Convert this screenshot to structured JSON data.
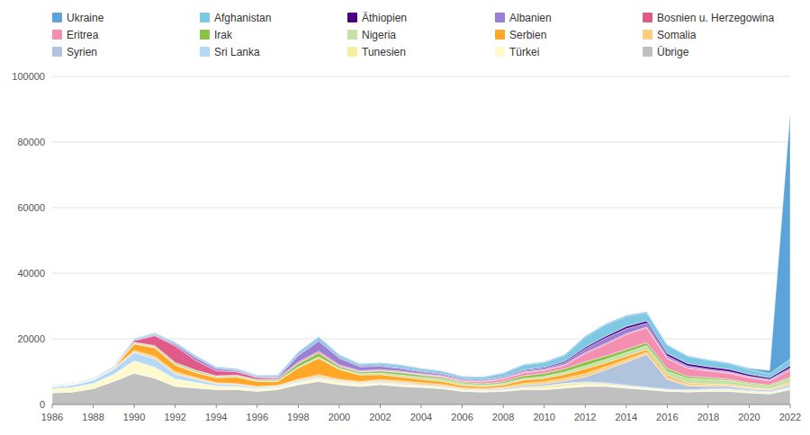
{
  "chart_data": {
    "type": "area",
    "stacked": true,
    "grid": true,
    "legend": "top",
    "x": [
      1986,
      1987,
      1988,
      1989,
      1990,
      1991,
      1992,
      1993,
      1994,
      1995,
      1996,
      1997,
      1998,
      1999,
      2000,
      2001,
      2002,
      2003,
      2004,
      2005,
      2006,
      2007,
      2008,
      2009,
      2010,
      2011,
      2012,
      2013,
      2014,
      2015,
      2016,
      2017,
      2018,
      2019,
      2020,
      2021,
      2022
    ],
    "series": [
      {
        "name": "Übrige",
        "color": "#C0C0C0",
        "values": [
          3500,
          3800,
          4800,
          7000,
          9500,
          8000,
          5500,
          5000,
          4500,
          4500,
          4000,
          4500,
          6000,
          7000,
          6000,
          5500,
          6000,
          5500,
          5200,
          4800,
          4000,
          3800,
          4000,
          4500,
          4500,
          5000,
          5500,
          5500,
          5000,
          4500,
          4000,
          3800,
          4000,
          4000,
          3500,
          3200,
          4500
        ]
      },
      {
        "name": "Türkei",
        "color": "#FFFACD",
        "values": [
          1200,
          1300,
          1500,
          2000,
          3500,
          3000,
          2000,
          1500,
          1000,
          800,
          700,
          600,
          700,
          800,
          600,
          500,
          400,
          400,
          300,
          300,
          250,
          200,
          200,
          300,
          300,
          400,
          500,
          400,
          350,
          300,
          250,
          200,
          200,
          200,
          200,
          200,
          300
        ]
      },
      {
        "name": "Tunesien",
        "color": "#F5F0A0",
        "values": [
          100,
          100,
          100,
          200,
          300,
          400,
          300,
          200,
          150,
          150,
          100,
          100,
          100,
          200,
          300,
          300,
          300,
          300,
          200,
          200,
          150,
          150,
          200,
          400,
          700,
          900,
          600,
          400,
          300,
          250,
          200,
          250,
          300,
          400,
          350,
          300,
          350
        ]
      },
      {
        "name": "Sri Lanka",
        "color": "#B3D9F7",
        "values": [
          500,
          700,
          1000,
          1500,
          2500,
          2500,
          1500,
          1000,
          600,
          500,
          400,
          300,
          300,
          300,
          200,
          200,
          300,
          300,
          200,
          200,
          150,
          150,
          150,
          150,
          150,
          200,
          300,
          300,
          250,
          200,
          200,
          200,
          200,
          200,
          200,
          200,
          300
        ]
      },
      {
        "name": "Syrien",
        "color": "#B0C4DE",
        "values": [
          50,
          50,
          50,
          100,
          150,
          150,
          100,
          100,
          100,
          100,
          100,
          100,
          150,
          200,
          200,
          200,
          200,
          200,
          150,
          150,
          150,
          200,
          300,
          500,
          600,
          700,
          1500,
          4000,
          7000,
          10000,
          3000,
          1200,
          800,
          700,
          500,
          400,
          600
        ]
      },
      {
        "name": "Somalia",
        "color": "#FFCC80",
        "values": [
          100,
          100,
          150,
          200,
          500,
          700,
          600,
          400,
          300,
          300,
          200,
          200,
          400,
          600,
          400,
          300,
          400,
          500,
          600,
          500,
          400,
          300,
          400,
          600,
          700,
          800,
          1000,
          900,
          800,
          700,
          600,
          500,
          400,
          350,
          300,
          250,
          400
        ]
      },
      {
        "name": "Serbien",
        "color": "#FFA726",
        "values": [
          0,
          0,
          0,
          0,
          2000,
          2500,
          2000,
          1500,
          1500,
          2000,
          1500,
          1200,
          3500,
          5000,
          3000,
          2000,
          1500,
          1200,
          1000,
          900,
          700,
          600,
          700,
          1000,
          1000,
          1200,
          1500,
          1200,
          1000,
          800,
          600,
          400,
          300,
          250,
          200,
          200,
          300
        ]
      },
      {
        "name": "Nigeria",
        "color": "#C5E1A5",
        "values": [
          50,
          50,
          50,
          100,
          200,
          300,
          300,
          250,
          200,
          200,
          200,
          200,
          300,
          400,
          300,
          400,
          500,
          600,
          700,
          700,
          600,
          500,
          500,
          500,
          600,
          700,
          900,
          1000,
          1100,
          1200,
          1300,
          1400,
          1500,
          1200,
          1000,
          900,
          1200
        ]
      },
      {
        "name": "Irak",
        "color": "#8BC34A",
        "values": [
          50,
          50,
          50,
          100,
          200,
          300,
          400,
          400,
          300,
          300,
          300,
          400,
          1000,
          1200,
          600,
          500,
          600,
          700,
          600,
          500,
          400,
          400,
          500,
          800,
          900,
          1000,
          1200,
          1100,
          1000,
          900,
          800,
          600,
          500,
          400,
          350,
          300,
          400
        ]
      },
      {
        "name": "Eritrea",
        "color": "#F48FB1",
        "values": [
          50,
          50,
          50,
          50,
          100,
          100,
          100,
          100,
          100,
          100,
          100,
          100,
          150,
          200,
          200,
          200,
          200,
          200,
          200,
          300,
          400,
          600,
          800,
          900,
          900,
          1000,
          2500,
          3500,
          4500,
          4500,
          3000,
          2500,
          2000,
          1800,
          1500,
          1200,
          2000
        ]
      },
      {
        "name": "Bosnien u. Herzegowina",
        "color": "#E05A8A",
        "values": [
          0,
          0,
          0,
          0,
          500,
          3000,
          5000,
          3000,
          1500,
          1000,
          600,
          400,
          300,
          400,
          300,
          200,
          250,
          250,
          200,
          200,
          150,
          150,
          150,
          200,
          200,
          250,
          300,
          300,
          300,
          250,
          200,
          200,
          200,
          200,
          200,
          200,
          300
        ]
      },
      {
        "name": "Albanien",
        "color": "#9B7FD4",
        "values": [
          0,
          0,
          0,
          0,
          100,
          200,
          500,
          800,
          600,
          400,
          200,
          150,
          2000,
          3000,
          2000,
          1200,
          1000,
          800,
          600,
          500,
          350,
          300,
          300,
          400,
          400,
          600,
          1200,
          1600,
          1500,
          1200,
          700,
          500,
          400,
          350,
          300,
          300,
          500
        ]
      },
      {
        "name": "Äthiopien",
        "color": "#4B0082",
        "values": [
          50,
          50,
          50,
          100,
          150,
          150,
          150,
          150,
          150,
          150,
          100,
          100,
          150,
          200,
          200,
          200,
          200,
          200,
          200,
          200,
          200,
          200,
          250,
          300,
          350,
          400,
          500,
          600,
          700,
          700,
          700,
          700,
          700,
          700,
          600,
          500,
          700
        ]
      },
      {
        "name": "Afghanistan",
        "color": "#7EC8E3",
        "values": [
          100,
          100,
          150,
          200,
          300,
          400,
          500,
          500,
          400,
          400,
          400,
          500,
          800,
          1000,
          700,
          600,
          700,
          800,
          700,
          700,
          600,
          700,
          1000,
          1500,
          1500,
          1800,
          3000,
          3500,
          3000,
          2500,
          2500,
          2200,
          2000,
          1800,
          1500,
          1200,
          2000
        ]
      },
      {
        "name": "Ukraine",
        "color": "#5BA3D9",
        "values": [
          50,
          50,
          50,
          100,
          150,
          150,
          100,
          100,
          100,
          100,
          100,
          100,
          150,
          200,
          200,
          200,
          200,
          200,
          150,
          150,
          150,
          150,
          200,
          200,
          200,
          250,
          300,
          300,
          300,
          300,
          250,
          200,
          200,
          200,
          300,
          1000,
          75000
        ]
      }
    ],
    "xlim": [
      1986,
      2022
    ],
    "ylim": [
      0,
      100000
    ],
    "xticks": [
      1986,
      1988,
      1990,
      1992,
      1994,
      1996,
      1998,
      2000,
      2002,
      2004,
      2006,
      2008,
      2010,
      2012,
      2014,
      2016,
      2018,
      2020,
      2022
    ],
    "yticks": [
      0,
      20000,
      40000,
      60000,
      80000,
      100000
    ]
  }
}
